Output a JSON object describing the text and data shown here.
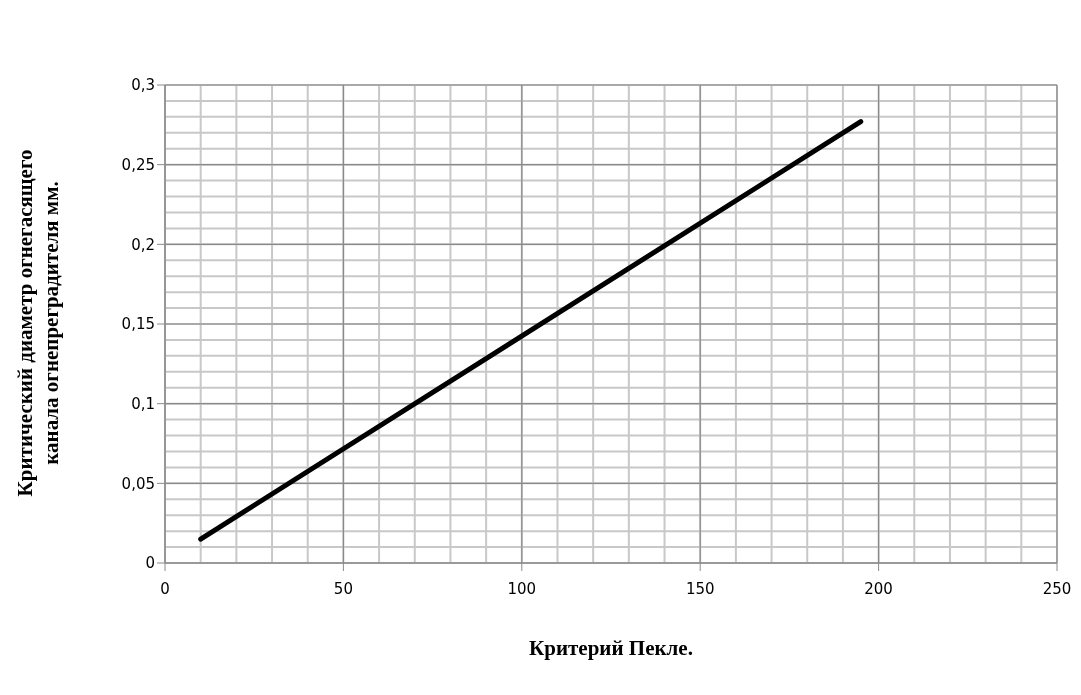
{
  "chart_data": {
    "type": "line",
    "xlabel": "Критерий Пекле.",
    "ylabel": "Критический диаметр огнегасящего\nканала огнепреградителя мм.",
    "x": [
      10,
      195
    ],
    "series": [
      {
        "color": "#000000",
        "values": [
          0.015,
          0.277
        ]
      }
    ],
    "xlim": [
      0,
      250
    ],
    "xticks": [
      0,
      50,
      100,
      150,
      200,
      250
    ],
    "ylim": [
      0,
      0.3
    ],
    "yticks": [
      0,
      {
        "value": 0.05,
        "label": "0,05"
      },
      {
        "value": 0.1,
        "label": "0,1"
      },
      {
        "value": 0.15,
        "label": "0,15"
      },
      {
        "value": 0.2,
        "label": "0,2"
      },
      {
        "value": 0.25,
        "label": "0,25"
      },
      {
        "value": 0.3,
        "label": "0,3"
      }
    ],
    "grid": true,
    "marker": "none",
    "line_style": "solid"
  }
}
